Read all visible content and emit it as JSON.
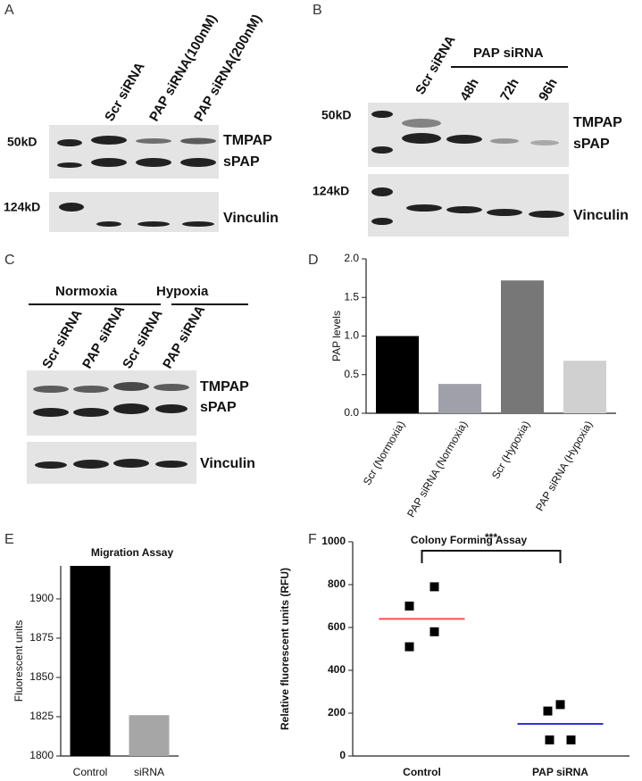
{
  "blots": [
    {
      "label": "A",
      "lanes": [
        "Scr siRNA",
        "PAP siRNA(100nM)",
        "PAP siRNA(200nM)"
      ],
      "markers": [
        "50kD",
        "124kD"
      ],
      "bands": [
        "TMPAP",
        "sPAP",
        "Vinculin"
      ]
    },
    {
      "label": "B",
      "lanes": [
        "Scr siRNA",
        "48h",
        "72h",
        "96h"
      ],
      "group_label": "PAP siRNA",
      "markers": [
        "50kD",
        "124kD"
      ],
      "bands": [
        "TMPAP",
        "sPAP",
        "Vinculin"
      ]
    },
    {
      "label": "C",
      "groups": [
        "Normoxia",
        "Hypoxia"
      ],
      "lanes": [
        "Scr siRNA",
        "PAP siRNA",
        "Scr siRNA",
        "PAP siRNA"
      ],
      "bands": [
        "TMPAP",
        "sPAP",
        "Vinculin"
      ]
    }
  ],
  "chart_data": [
    {
      "type": "bar",
      "label": "D",
      "y_label": "PAP levels",
      "categories": [
        "Scr (Normoxia)",
        "PAP siRNA (Normoxia)",
        "Scr (Hypoxia)",
        "PAP siRNA (Hypoxia)"
      ],
      "values": [
        1.0,
        0.38,
        1.72,
        0.68
      ],
      "colors": [
        "#000000",
        "#a0a0aa",
        "#777777",
        "#d0d0d0"
      ],
      "ylim": [
        0,
        2
      ],
      "yticks": [
        {
          "value": 0,
          "label": "0.0"
        },
        0.5,
        {
          "value": 1,
          "label": "1.0"
        },
        1.5,
        {
          "value": 2,
          "label": "2.0"
        }
      ]
    },
    {
      "type": "bar",
      "label": "E",
      "title": "Migration Assay",
      "y_label": "Fluorescent units",
      "categories": [
        "Control",
        "siRNA"
      ],
      "values": [
        1921,
        1826
      ],
      "colors": [
        "#000000",
        "#a6a6a6"
      ],
      "ylim": [
        1800,
        1921
      ],
      "yticks": [
        1800,
        1825,
        1850,
        1875,
        1900
      ]
    },
    {
      "type": "dot",
      "label": "F",
      "title": "Colony Forming Assay",
      "y_label": "Relative fluorescent units (RFU)",
      "categories": [
        "Control",
        "PAP siRNA"
      ],
      "groups": [
        {
          "values": [
            790,
            700,
            580,
            510
          ],
          "mean": 640,
          "mean_color": "#ff4d4d"
        },
        {
          "values": [
            240,
            210,
            75,
            75
          ],
          "mean": 150,
          "mean_color": "#3333cc"
        }
      ],
      "marker_color": "#000000",
      "annotation": "***",
      "ylim": [
        0,
        1000
      ],
      "yticks": [
        0,
        200,
        400,
        600,
        800,
        1000
      ]
    }
  ]
}
